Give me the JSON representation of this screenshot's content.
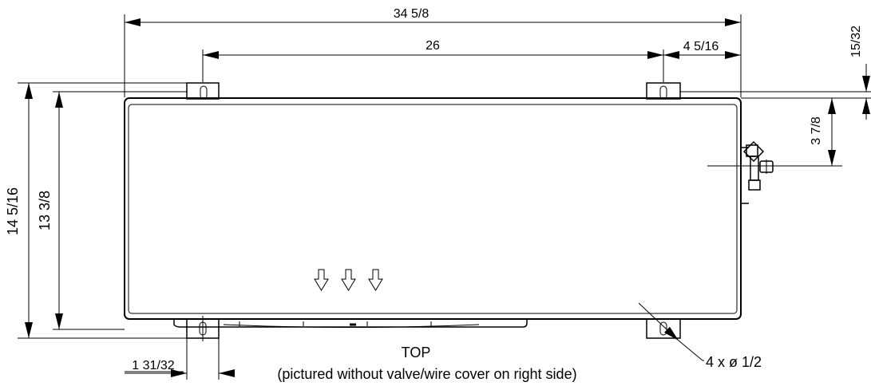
{
  "drawing": {
    "dims": {
      "overall_width": "34 5/8",
      "mount_spacing": "26",
      "right_offset": "4 5/16",
      "top_offset": "15/32",
      "overall_depth": "14 5/16",
      "body_depth": "13 3/8",
      "valve_offset": "3 7/8",
      "bracket_width": "1 31/32",
      "holes": "4 x ø 1/2"
    },
    "caption": {
      "title": "TOP",
      "note": "(pictured without valve/wire cover on right side)"
    }
  }
}
